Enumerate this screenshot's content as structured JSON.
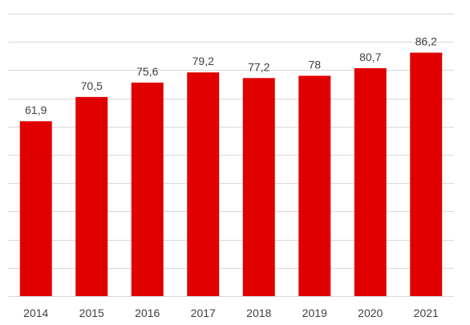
{
  "chart_data": {
    "type": "bar",
    "categories": [
      "2014",
      "2015",
      "2016",
      "2017",
      "2018",
      "2019",
      "2020",
      "2021"
    ],
    "values": [
      61.9,
      70.5,
      75.6,
      79.2,
      77.2,
      78,
      80.7,
      86.2
    ],
    "data_labels": [
      "61,9",
      "70,5",
      "75,6",
      "79,2",
      "77,2",
      "78",
      "80,7",
      "86,2"
    ],
    "title": "",
    "xlabel": "",
    "ylabel": "",
    "ylim": [
      0,
      100
    ],
    "grid": true,
    "legend": "none",
    "bar_color": "#e00000",
    "gridline_color": "#d9d9d9",
    "text_color": "#404040"
  }
}
